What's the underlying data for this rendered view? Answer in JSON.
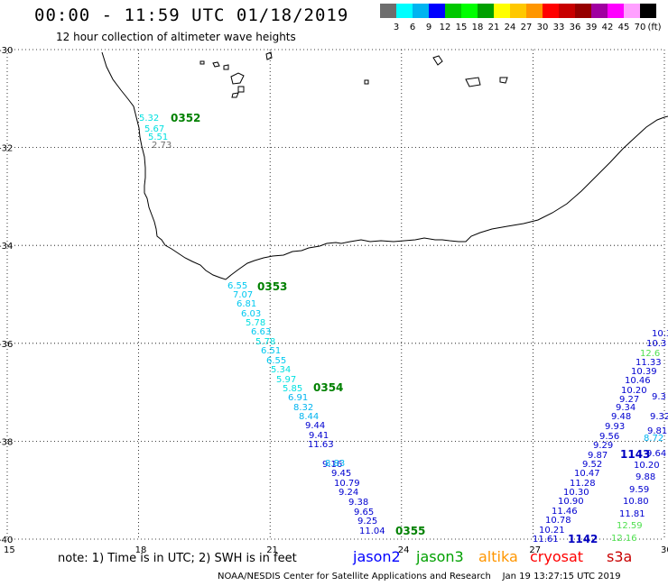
{
  "header": {
    "title": "00:00 - 11:59 UTC 01/18/2019",
    "subtitle": "12 hour collection of altimeter wave heights"
  },
  "legend": {
    "units": "(ft)",
    "bins": [
      {
        "label": "3",
        "color": "#6e6e6e"
      },
      {
        "label": "6",
        "color": "#00ffff"
      },
      {
        "label": "9",
        "color": "#00b4f0"
      },
      {
        "label": "12",
        "color": "#0000ff"
      },
      {
        "label": "15",
        "color": "#00c800"
      },
      {
        "label": "18",
        "color": "#00ff00"
      },
      {
        "label": "21",
        "color": "#00a000"
      },
      {
        "label": "24",
        "color": "#ffff00"
      },
      {
        "label": "27",
        "color": "#ffc800"
      },
      {
        "label": "30",
        "color": "#ff9600"
      },
      {
        "label": "33",
        "color": "#ff0000"
      },
      {
        "label": "36",
        "color": "#c80000"
      },
      {
        "label": "39",
        "color": "#960000"
      },
      {
        "label": "42",
        "color": "#a000a0"
      },
      {
        "label": "45",
        "color": "#ff00ff"
      },
      {
        "label": "70",
        "color": "#ffa0ff"
      },
      {
        "label": "",
        "color": "#000000"
      }
    ]
  },
  "map": {
    "lon_range": [
      15,
      30
    ],
    "lat_range": [
      -40,
      -30
    ],
    "lon_ticks": [
      "15",
      "18",
      "21",
      "24",
      "27",
      "30"
    ],
    "lat_ticks": [
      "-30",
      "-32",
      "-34",
      "-36",
      "-38",
      "-40"
    ],
    "grid_lines": "dotted",
    "pass_labels": [
      "0352",
      "0353",
      "0354",
      "0355",
      "1142",
      "1143"
    ],
    "observations": [
      {
        "text": "5.32",
        "color": "#00e0e0"
      },
      {
        "text": "5.67",
        "color": "#00e0e0"
      },
      {
        "text": "5.51",
        "color": "#00e0e0"
      },
      {
        "text": "2.73",
        "color": "#707070"
      },
      {
        "text": "6.55",
        "color": "#00c8f0"
      },
      {
        "text": "7.07",
        "color": "#00c8f0"
      },
      {
        "text": "6.81",
        "color": "#00c8f0"
      },
      {
        "text": "6.03",
        "color": "#00c8f0"
      },
      {
        "text": "5.78",
        "color": "#00e0e0"
      },
      {
        "text": "6.63",
        "color": "#00c8f0"
      },
      {
        "text": "5.78",
        "color": "#00e0e0"
      },
      {
        "text": "6.51",
        "color": "#00c8f0"
      },
      {
        "text": "6.55",
        "color": "#00c8f0"
      },
      {
        "text": "5.34",
        "color": "#00e0e0"
      },
      {
        "text": "5.97",
        "color": "#00e0e0"
      },
      {
        "text": "5.85",
        "color": "#00e0e0"
      },
      {
        "text": "6.91",
        "color": "#00b4f0"
      },
      {
        "text": "8.32",
        "color": "#00b4f0"
      },
      {
        "text": "8.44",
        "color": "#00b4f0"
      },
      {
        "text": "9.44",
        "color": "#0000d0"
      },
      {
        "text": "9.41",
        "color": "#0000d0"
      },
      {
        "text": "11.63",
        "color": "#0000d0"
      },
      {
        "text": "9.16",
        "color": "#0000d0"
      },
      {
        "text": "8.83",
        "color": "#00b4f0"
      },
      {
        "text": "9.45",
        "color": "#0000d0"
      },
      {
        "text": "10.79",
        "color": "#0000d0"
      },
      {
        "text": "9.24",
        "color": "#0000d0"
      },
      {
        "text": "9.38",
        "color": "#0000d0"
      },
      {
        "text": "9.65",
        "color": "#0000d0"
      },
      {
        "text": "9.25",
        "color": "#0000d0"
      },
      {
        "text": "11.04",
        "color": "#0000d0"
      },
      {
        "text": "9.34",
        "color": "#0000d0"
      },
      {
        "text": "9.48",
        "color": "#0000d0"
      },
      {
        "text": "9.93",
        "color": "#0000d0"
      },
      {
        "text": "9.56",
        "color": "#0000d0"
      },
      {
        "text": "9.29",
        "color": "#0000d0"
      },
      {
        "text": "9.87",
        "color": "#0000d0"
      },
      {
        "text": "9.52",
        "color": "#0000d0"
      },
      {
        "text": "10.47",
        "color": "#0000d0"
      },
      {
        "text": "11.28",
        "color": "#0000d0"
      },
      {
        "text": "10.30",
        "color": "#0000d0"
      },
      {
        "text": "10.90",
        "color": "#0000d0"
      },
      {
        "text": "11.46",
        "color": "#0000d0"
      },
      {
        "text": "10.78",
        "color": "#0000d0"
      },
      {
        "text": "10.21",
        "color": "#0000d0"
      },
      {
        "text": "11.61",
        "color": "#0000d0"
      },
      {
        "text": "10.3",
        "color": "#0000d0"
      },
      {
        "text": "12.6",
        "color": "#50e050"
      },
      {
        "text": "11.33",
        "color": "#0000d0"
      },
      {
        "text": "10.39",
        "color": "#0000d0"
      },
      {
        "text": "10.46",
        "color": "#0000d0"
      },
      {
        "text": "10.20",
        "color": "#0000d0"
      },
      {
        "text": "9.27",
        "color": "#0000d0"
      },
      {
        "text": "9.81",
        "color": "#0000d0"
      },
      {
        "text": "8.72",
        "color": "#00b4f0"
      },
      {
        "text": "9.64",
        "color": "#0000d0"
      },
      {
        "text": "10.20",
        "color": "#0000d0"
      },
      {
        "text": "9.88",
        "color": "#0000d0"
      },
      {
        "text": "9.59",
        "color": "#0000d0"
      },
      {
        "text": "10.80",
        "color": "#0000d0"
      },
      {
        "text": "11.81",
        "color": "#0000d0"
      },
      {
        "text": "12.59",
        "color": "#50e050"
      },
      {
        "text": "12.16",
        "color": "#50e050"
      },
      {
        "text": "9.3",
        "color": "#0000d0"
      },
      {
        "text": "9.32",
        "color": "#0000d0"
      },
      {
        "text": "10.3",
        "color": "#0000d0"
      }
    ]
  },
  "footer": {
    "note": "note: 1) Time is in UTC; 2) SWH is in feet",
    "satellites": [
      {
        "name": "jason2",
        "color": "#0000ff"
      },
      {
        "name": "jason3",
        "color": "#00a000"
      },
      {
        "name": "altika",
        "color": "#ff9600"
      },
      {
        "name": "cryosat",
        "color": "#ff0000"
      },
      {
        "name": "s3a",
        "color": "#c80000"
      }
    ],
    "credit": "NOAA/NESDIS Center for Satellite Applications and Research    Jan 19 13:27:15 UTC 2019"
  }
}
